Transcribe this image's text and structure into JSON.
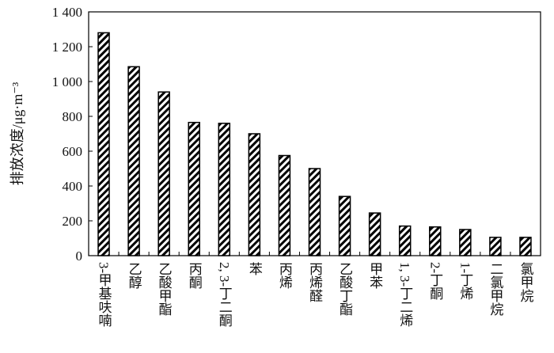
{
  "chart_data": {
    "type": "bar",
    "ylabel": "排放浓度/μg·m⁻³",
    "categories": [
      "3-甲基呋喃",
      "乙醇",
      "乙酸甲酯",
      "丙酮",
      "2, 3-丁二酮",
      "苯",
      "丙烯",
      "丙烯醛",
      "乙酸丁酯",
      "甲苯",
      "1, 3-丁二烯",
      "2-丁酮",
      "1-丁烯",
      "二氯甲烷",
      "氯甲烷"
    ],
    "values": [
      1280,
      1085,
      940,
      765,
      760,
      700,
      575,
      500,
      340,
      245,
      170,
      165,
      150,
      105,
      105
    ],
    "color": "#000000",
    "ylim": [
      0,
      1400
    ],
    "yticks": [
      0,
      200,
      400,
      600,
      800,
      {
        "value": 1000,
        "label": "1 000"
      },
      {
        "value": 1200,
        "label": "1 200"
      },
      {
        "value": 1400,
        "label": "1 400"
      }
    ]
  }
}
